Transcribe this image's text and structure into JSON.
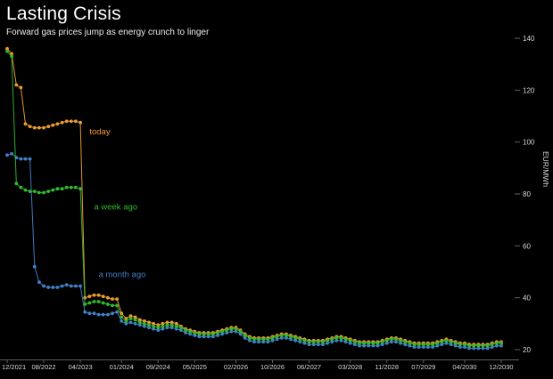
{
  "header": {
    "title": "Lasting Crisis",
    "subtitle": "Forward gas prices jump as energy crunch to linger"
  },
  "colors": {
    "background": "#000000",
    "title_text": "#ffffff",
    "subtitle_text": "#ededed",
    "axis_text": "#d9d9d9",
    "axis_line": "#5f5f5f",
    "today": "#ef9b2d",
    "week_ago": "#2fba2f",
    "month_ago": "#4080c8"
  },
  "chart_data": {
    "type": "scatter",
    "title": "Lasting Crisis",
    "subtitle": "Forward gas prices jump as energy crunch to linger",
    "xlabel": "",
    "ylabel": "EUR/MWh",
    "x_start": "12/2021",
    "x_frequency": "monthly",
    "ylim": [
      20,
      140
    ],
    "grid": false,
    "legend_position": "inline-labels",
    "y_ticks": [
      20,
      40,
      60,
      80,
      100,
      120,
      140
    ],
    "x_ticks": [
      {
        "label": "12/2021",
        "month": 0
      },
      {
        "label": "08/2022",
        "month": 8
      },
      {
        "label": "04/2023",
        "month": 16
      },
      {
        "label": "01/2024",
        "month": 25
      },
      {
        "label": "09/2024",
        "month": 33
      },
      {
        "label": "05/2025",
        "month": 41
      },
      {
        "label": "02/2026",
        "month": 50
      },
      {
        "label": "10/2026",
        "month": 58
      },
      {
        "label": "06/2027",
        "month": 66
      },
      {
        "label": "03/2028",
        "month": 75
      },
      {
        "label": "11/2028",
        "month": 83
      },
      {
        "label": "07/2029",
        "month": 91
      },
      {
        "label": "04/2030",
        "month": 100
      },
      {
        "label": "12/2030",
        "month": 108
      }
    ],
    "series": [
      {
        "name": "a month ago",
        "color": "#4080c8",
        "label_anchor": {
          "month": 20,
          "value": 48
        },
        "values": [
          95,
          95.5,
          94,
          93.5,
          93.5,
          93.5,
          52,
          46,
          44.5,
          44,
          44,
          44,
          44.5,
          45,
          44.5,
          44.5,
          44.5,
          34.5,
          34,
          34,
          33.5,
          33.5,
          33.5,
          34,
          34.5,
          31,
          30,
          30.5,
          30,
          29.5,
          29,
          28.5,
          28,
          27.5,
          28,
          28.5,
          28.5,
          28,
          27.5,
          26.5,
          26,
          25.5,
          25,
          25,
          25,
          25,
          25.5,
          26,
          26.5,
          27,
          27,
          26,
          24.5,
          23.5,
          23,
          23,
          23,
          23,
          23.5,
          24,
          24.5,
          24.5,
          24,
          23.5,
          23,
          22.5,
          22,
          22,
          22,
          22,
          22.5,
          23,
          23.5,
          23.5,
          23,
          22.5,
          22,
          21.5,
          21.5,
          21.5,
          21.5,
          21.5,
          22,
          22.5,
          23,
          23,
          22.5,
          22,
          21.5,
          21,
          21,
          21,
          21,
          21,
          21.5,
          22,
          22.5,
          22,
          21.5,
          21,
          21,
          20.5,
          20.5,
          20.5,
          20.5,
          20.5,
          21,
          21.5,
          21.5
        ]
      },
      {
        "name": "today",
        "color": "#ef9b2d",
        "label_anchor": {
          "month": 18,
          "value": 103
        },
        "values": [
          136,
          134,
          122,
          121,
          107,
          106,
          105.5,
          105.5,
          105.5,
          106,
          106.5,
          107,
          107.5,
          108,
          108,
          108,
          107.5,
          40,
          40.5,
          41,
          41,
          40.5,
          40,
          39.5,
          39.5,
          34,
          32,
          33,
          32.5,
          31.5,
          31,
          30.5,
          30,
          29.5,
          30,
          30.5,
          30.5,
          30,
          29,
          28,
          27.5,
          27,
          26.5,
          26.5,
          26.5,
          26.5,
          27,
          27.5,
          28,
          28.5,
          28.5,
          27.5,
          26,
          25,
          24.5,
          24.5,
          24.5,
          24.5,
          25,
          25.5,
          26,
          26,
          25.5,
          25,
          24.5,
          24,
          23.5,
          23.5,
          23.5,
          23.5,
          24,
          24.5,
          25,
          25,
          24.5,
          24,
          23.5,
          23,
          23,
          23,
          23,
          23,
          23.5,
          24,
          24.5,
          24.5,
          24,
          23.5,
          23,
          22.5,
          22.5,
          22.5,
          22.5,
          22.5,
          23,
          23.5,
          24,
          23.5,
          23,
          22.5,
          22.5,
          22,
          22,
          22,
          22,
          22,
          22.5,
          23,
          23
        ]
      },
      {
        "name": "a week ago",
        "color": "#2fba2f",
        "label_anchor": {
          "month": 19,
          "value": 74
        },
        "values": [
          135,
          133,
          84,
          82.5,
          81.5,
          81,
          81,
          80.5,
          80.5,
          81,
          81.5,
          82,
          82,
          82.5,
          82.5,
          82.5,
          82,
          37.5,
          38,
          38.5,
          38.5,
          38,
          37.5,
          37,
          37,
          32.5,
          31,
          32,
          31.5,
          30.5,
          30,
          29.5,
          29,
          28.5,
          29,
          29.5,
          29.5,
          29,
          28.5,
          27.5,
          27,
          26.5,
          26,
          26,
          26,
          26,
          26.5,
          27,
          27.5,
          28,
          28,
          27,
          25.5,
          24.5,
          24,
          24,
          24,
          24,
          24.5,
          25,
          25.5,
          25.5,
          25,
          24.5,
          24,
          23.5,
          23,
          23,
          23,
          23,
          23.5,
          24,
          24.5,
          24.5,
          24,
          23.5,
          23,
          22.5,
          22.5,
          22.5,
          22.5,
          22.5,
          23,
          23.5,
          24,
          24,
          23.5,
          23,
          22.5,
          22,
          22,
          22,
          22,
          22,
          22.5,
          23,
          23.5,
          23,
          22.5,
          22,
          22,
          21.5,
          21.5,
          21.5,
          21.5,
          21.5,
          22,
          22.5,
          22.5
        ]
      }
    ]
  }
}
